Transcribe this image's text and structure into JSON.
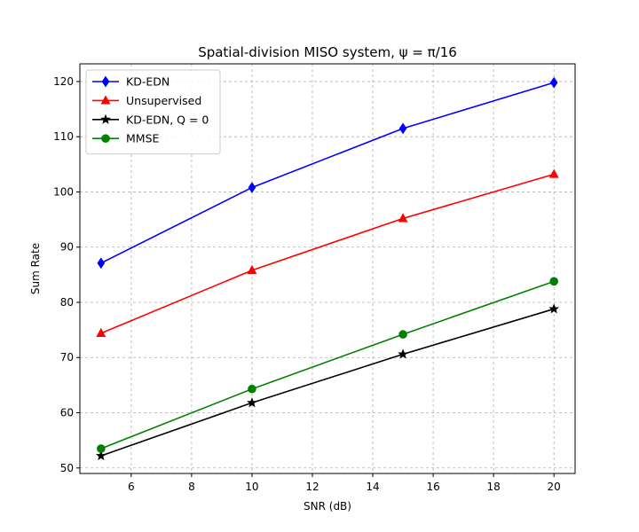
{
  "chart_data": {
    "type": "line",
    "title": "Spatial-division MISO system, ψ = π/16",
    "xlabel": "SNR (dB)",
    "ylabel": "Sum Rate",
    "xlim": [
      4.3,
      20.7
    ],
    "ylim": [
      49,
      123.2
    ],
    "xticks": [
      6,
      8,
      10,
      12,
      14,
      16,
      18,
      20
    ],
    "yticks": [
      50,
      60,
      70,
      80,
      90,
      100,
      110,
      120
    ],
    "grid": true,
    "legend_position": "top-left",
    "x": [
      5,
      10,
      15,
      20
    ],
    "series": [
      {
        "name": "KD-EDN",
        "color": "#0000ff",
        "marker": "diamond",
        "values": [
          87.1,
          100.8,
          111.5,
          119.8
        ]
      },
      {
        "name": "Unsupervised",
        "color": "#ff0000",
        "marker": "triangle",
        "values": [
          74.4,
          85.8,
          95.2,
          103.2
        ]
      },
      {
        "name": "KD-EDN, Q = 0",
        "color": "#000000",
        "marker": "star",
        "values": [
          52.2,
          61.8,
          70.6,
          78.8
        ]
      },
      {
        "name": "MMSE",
        "color": "#008000",
        "marker": "circle",
        "values": [
          53.5,
          64.3,
          74.2,
          83.8
        ]
      }
    ]
  }
}
